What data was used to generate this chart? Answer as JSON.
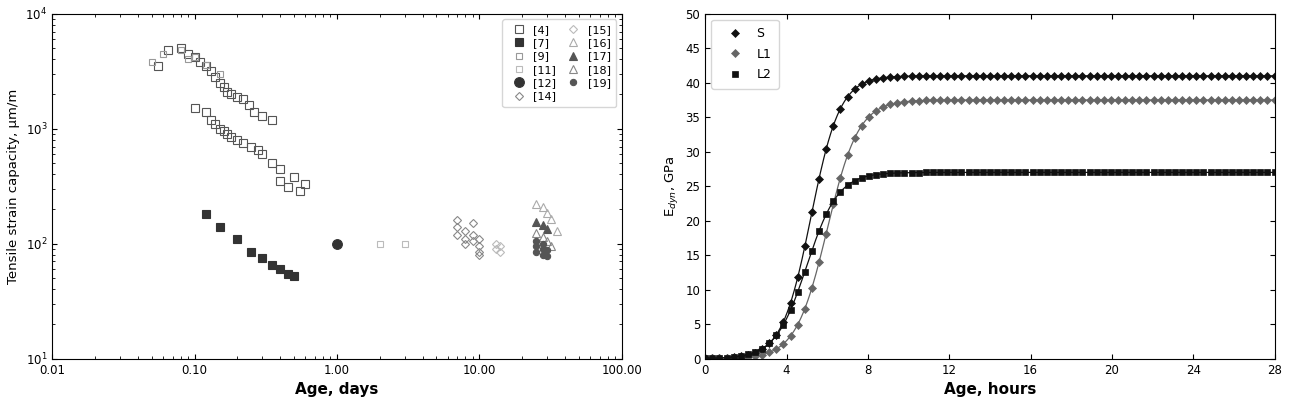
{
  "left_chart": {
    "xlabel": "Age, days",
    "ylabel": "Tensile strain capacity, μm/m",
    "xlim": [
      0.01,
      100.0
    ],
    "ylim": [
      10,
      10000
    ],
    "series": {
      "ref4": {
        "label": "[4]",
        "marker": "s",
        "facecolor": "none",
        "edgecolor": "#555555",
        "markersize": 5.5,
        "x": [
          0.055,
          0.065,
          0.08,
          0.09,
          0.1,
          0.11,
          0.12,
          0.13,
          0.14,
          0.15,
          0.16,
          0.17,
          0.18,
          0.2,
          0.22,
          0.24,
          0.26,
          0.3,
          0.35,
          0.1,
          0.12,
          0.13,
          0.14,
          0.15,
          0.16,
          0.17,
          0.18,
          0.2,
          0.22,
          0.25,
          0.28,
          0.3,
          0.35,
          0.4,
          0.5,
          0.6,
          0.4,
          0.45,
          0.55
        ],
        "y": [
          3500,
          4800,
          5000,
          4500,
          4200,
          3800,
          3500,
          3200,
          2800,
          2500,
          2300,
          2100,
          2000,
          1900,
          1800,
          1600,
          1400,
          1300,
          1200,
          1500,
          1400,
          1200,
          1100,
          1000,
          950,
          900,
          850,
          800,
          750,
          700,
          650,
          600,
          500,
          450,
          380,
          330,
          350,
          310,
          290
        ]
      },
      "ref9": {
        "label": "[9]",
        "marker": "s",
        "facecolor": "none",
        "edgecolor": "#999999",
        "markersize": 5.0,
        "x": [
          0.05,
          0.08,
          0.1,
          0.12,
          0.15,
          0.06,
          0.09
        ],
        "y": [
          3800,
          4800,
          4200,
          3600,
          3000,
          4500,
          4000
        ]
      },
      "ref7": {
        "label": "[7]",
        "marker": "s",
        "facecolor": "#333333",
        "edgecolor": "#333333",
        "markersize": 5.5,
        "x": [
          0.12,
          0.15,
          0.2,
          0.25,
          0.3,
          0.35,
          0.4,
          0.45,
          0.5
        ],
        "y": [
          180,
          140,
          110,
          85,
          75,
          65,
          60,
          55,
          52
        ]
      },
      "ref11": {
        "label": "[11]",
        "marker": "s",
        "facecolor": "none",
        "edgecolor": "#bbbbbb",
        "markersize": 4.5,
        "x": [
          2.0,
          3.0
        ],
        "y": [
          100,
          100
        ]
      },
      "ref12": {
        "label": "[12]",
        "marker": "o",
        "facecolor": "#333333",
        "edgecolor": "#333333",
        "markersize": 7,
        "x": [
          1.0
        ],
        "y": [
          100
        ]
      },
      "ref14": {
        "label": "[14]",
        "marker": "D",
        "facecolor": "none",
        "edgecolor": "#888888",
        "markersize": 4.5,
        "x": [
          7.0,
          7.0,
          7.0,
          8.0,
          8.0,
          8.0,
          9.0,
          9.0,
          9.0,
          10.0,
          10.0,
          10.0,
          10.0
        ],
        "y": [
          160,
          140,
          120,
          130,
          110,
          100,
          150,
          120,
          105,
          110,
          95,
          85,
          80
        ]
      },
      "ref15": {
        "label": "[15]",
        "marker": "D",
        "facecolor": "none",
        "edgecolor": "#bbbbbb",
        "markersize": 4.5,
        "x": [
          13.0,
          13.0,
          14.0,
          14.0
        ],
        "y": [
          100,
          90,
          95,
          85
        ]
      },
      "ref16": {
        "label": "[16]",
        "marker": "^",
        "facecolor": "none",
        "edgecolor": "#aaaaaa",
        "markersize": 5.5,
        "x": [
          25.0,
          28.0,
          30.0,
          32.0,
          35.0
        ],
        "y": [
          220,
          210,
          185,
          165,
          130
        ]
      },
      "ref17": {
        "label": "[17]",
        "marker": "^",
        "facecolor": "#555555",
        "edgecolor": "#555555",
        "markersize": 5.5,
        "x": [
          25.0,
          28.0,
          30.0
        ],
        "y": [
          155,
          145,
          135
        ]
      },
      "ref18": {
        "label": "[18]",
        "marker": "^",
        "facecolor": "none",
        "edgecolor": "#888888",
        "markersize": 5.5,
        "x": [
          25.0,
          28.0,
          30.0,
          32.0
        ],
        "y": [
          125,
          115,
          105,
          95
        ]
      },
      "ref19": {
        "label": "[19]",
        "marker": "o",
        "facecolor": "#555555",
        "edgecolor": "#555555",
        "markersize": 4.5,
        "x": [
          25.0,
          25.0,
          25.0,
          28.0,
          28.0,
          28.0,
          30.0,
          30.0
        ],
        "y": [
          105,
          95,
          85,
          100,
          90,
          80,
          88,
          78
        ]
      }
    }
  },
  "right_chart": {
    "xlabel": "Age, hours",
    "ylabel": "E$_{dyn}$, GPa",
    "xlim": [
      0,
      28
    ],
    "ylim": [
      0,
      50
    ],
    "xticks": [
      0,
      4,
      8,
      12,
      16,
      20,
      24,
      28
    ],
    "yticks": [
      0,
      5,
      10,
      15,
      20,
      25,
      30,
      35,
      40,
      45,
      50
    ],
    "series": {
      "S": {
        "label": "S",
        "marker": "D",
        "color": "#111111",
        "markersize": 4,
        "Emax": 41.0,
        "t0": 5.2,
        "k": 1.4
      },
      "L1": {
        "label": "L1",
        "marker": "D",
        "color": "#666666",
        "markersize": 4,
        "Emax": 37.5,
        "t0": 6.0,
        "k": 1.3
      },
      "L2": {
        "label": "L2",
        "marker": "s",
        "color": "#111111",
        "markersize": 4,
        "Emax": 27.0,
        "t0": 5.0,
        "k": 1.3
      }
    }
  },
  "figure_bgcolor": "#ffffff"
}
